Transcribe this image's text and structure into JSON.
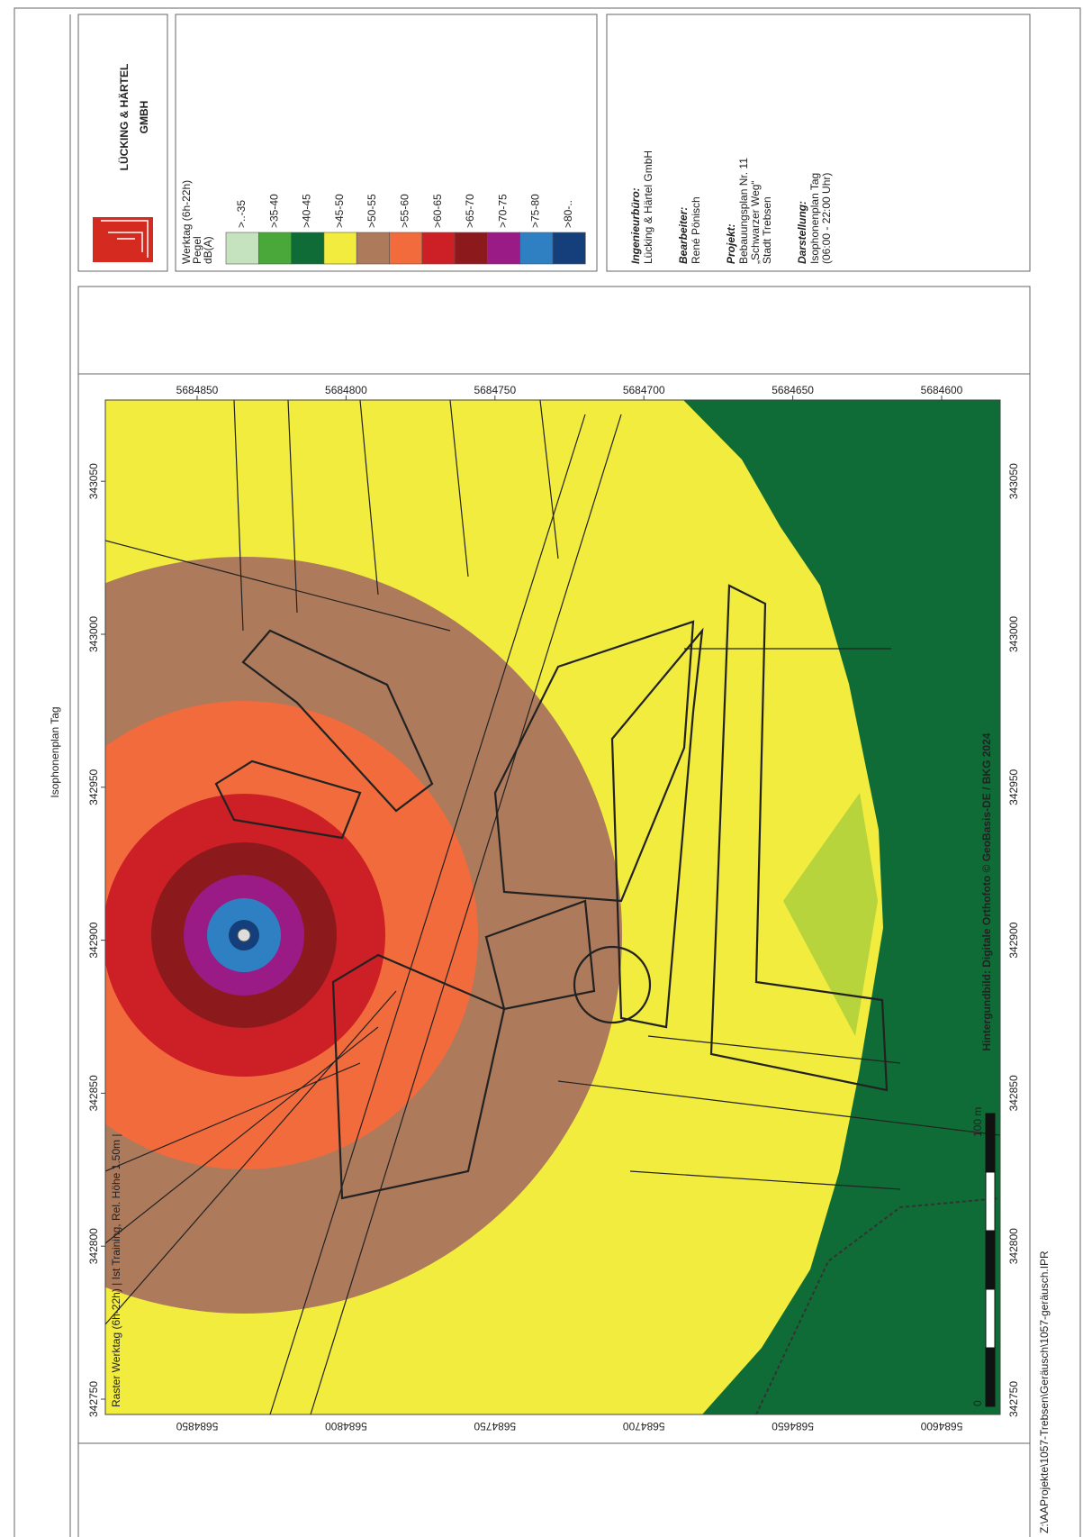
{
  "title": "Isophonenplan Tag",
  "company": {
    "line1": "LÜCKING & HÄRTEL",
    "line2": "GMBH"
  },
  "legend": {
    "header": [
      "Werktag (6h-22h)",
      "Pegel",
      "dB(A)"
    ],
    "items": [
      {
        "label": ">..-35",
        "color": "#c5e3bf"
      },
      {
        "label": ">35-40",
        "color": "#4aa83a"
      },
      {
        "label": ">40-45",
        "color": "#106c37"
      },
      {
        "label": ">45-50",
        "color": "#f2ec3e"
      },
      {
        "label": ">50-55",
        "color": "#ad7a5c"
      },
      {
        "label": ">55-60",
        "color": "#f26b3d"
      },
      {
        "label": ">60-65",
        "color": "#cc1f26"
      },
      {
        "label": ">65-70",
        "color": "#8c1a1d"
      },
      {
        "label": ">70-75",
        "color": "#9a1b86"
      },
      {
        "label": ">75-80",
        "color": "#2f80c2"
      },
      {
        "label": ">80-..",
        "color": "#143f7b"
      }
    ]
  },
  "info": [
    {
      "heading": "Ingenieurbüro:",
      "lines": [
        "Lücking & Härtel GmbH"
      ]
    },
    {
      "heading": "Bearbeiter:",
      "lines": [
        "René Pönisch"
      ]
    },
    {
      "heading": "Projekt:",
      "lines": [
        "Bebauungsplan Nr. 11",
        "„Schwarzer Weg“",
        "Stadt Trebsen"
      ]
    },
    {
      "heading": "Darstellung:",
      "lines": [
        "Isophonenplan Tag",
        "(06:00 - 22:00 Uhr)"
      ]
    }
  ],
  "map": {
    "easting_ticks": [
      342750,
      342800,
      342850,
      342900,
      342950,
      343000,
      343050
    ],
    "northing_ticks": [
      5684850,
      5684800,
      5684750,
      5684700,
      5684650,
      5684600
    ],
    "caption": "Raster Werktag (6h-22h) | Ist Training, Rel. Höhe 1.50m |",
    "copyright": "Hintergundbild: Digitale Orthofoto © GeoBasis-DE / BKG 2024",
    "scale": {
      "start": "0",
      "end": "100 m"
    }
  },
  "file_path": "Z:\\AAProjekte\\1057-Trebsen\\Geräusch\\1057-geräusch.IPR"
}
